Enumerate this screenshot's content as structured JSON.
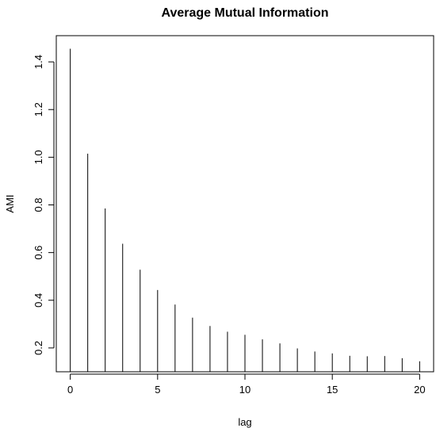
{
  "chart_data": {
    "type": "bar",
    "style": "vertical-lines",
    "title": "Average Mutual Information",
    "xlabel": "lag",
    "ylabel": "AMI",
    "x": [
      0,
      1,
      2,
      3,
      4,
      5,
      6,
      7,
      8,
      9,
      10,
      11,
      12,
      13,
      14,
      15,
      16,
      17,
      18,
      19,
      20
    ],
    "values": [
      1.455,
      1.015,
      0.785,
      0.637,
      0.528,
      0.443,
      0.382,
      0.327,
      0.292,
      0.268,
      0.255,
      0.236,
      0.219,
      0.198,
      0.185,
      0.177,
      0.167,
      0.165,
      0.166,
      0.157,
      0.144
    ],
    "xlim": [
      -0.8,
      20.8
    ],
    "ylim": [
      0.1,
      1.51
    ],
    "xticks": [
      0,
      5,
      10,
      15,
      20
    ],
    "yticks": [
      0.2,
      0.4,
      0.6,
      0.8,
      1.0,
      1.2,
      1.4
    ],
    "xtick_labels": [
      "0",
      "5",
      "10",
      "15",
      "20"
    ],
    "ytick_labels": [
      "0.2",
      "0.4",
      "0.6",
      "0.8",
      "1.0",
      "1.2",
      "1.4"
    ],
    "grid": false,
    "legend": false,
    "colors": {
      "line": "#000000",
      "axes": "#000000",
      "background": "#ffffff"
    }
  }
}
